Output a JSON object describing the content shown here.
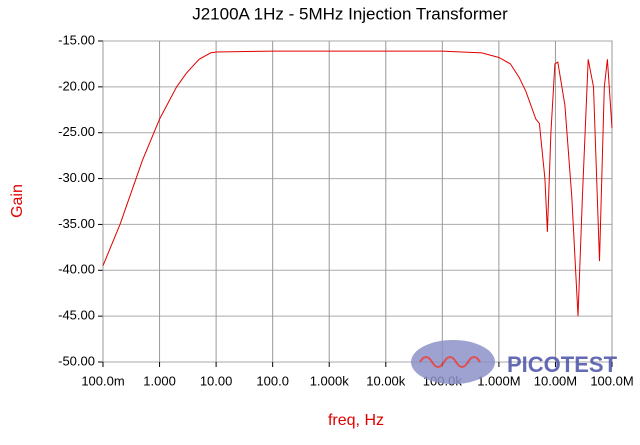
{
  "chart_data": {
    "type": "line",
    "title": "J2100A 1Hz - 5MHz Injection Transformer",
    "x_label": "freq, Hz",
    "y_label": "Gain",
    "log_x": true,
    "grid": true,
    "xlim": [
      0.1,
      100000000
    ],
    "ylim": [
      -50,
      -15
    ],
    "xticks": [
      {
        "value": 0.1,
        "label": "100.0m"
      },
      {
        "value": 1,
        "label": "1.000"
      },
      {
        "value": 10,
        "label": "10.00"
      },
      {
        "value": 100,
        "label": "100.0"
      },
      {
        "value": 1000,
        "label": "1.000k"
      },
      {
        "value": 10000,
        "label": "10.00k"
      },
      {
        "value": 100000,
        "label": "100.0k"
      },
      {
        "value": 1000000,
        "label": "1.000M"
      },
      {
        "value": 10000000,
        "label": "10.00M"
      },
      {
        "value": 100000000,
        "label": "100.0M"
      }
    ],
    "yticks": [
      {
        "value": -15,
        "label": "-15.00"
      },
      {
        "value": -20,
        "label": "-20.00"
      },
      {
        "value": -25,
        "label": "-25.00"
      },
      {
        "value": -30,
        "label": "-30.00"
      },
      {
        "value": -35,
        "label": "-35.00"
      },
      {
        "value": -40,
        "label": "-40.00"
      },
      {
        "value": -45,
        "label": "-45.00"
      },
      {
        "value": -50,
        "label": "-50.00"
      }
    ],
    "series": [
      {
        "name": "Gain",
        "color": "#e00000",
        "x": [
          0.1,
          0.2,
          0.5,
          1,
          2,
          3,
          5,
          8,
          10,
          100,
          1000,
          10000,
          100000,
          500000,
          1000000,
          1600000,
          2300000,
          3000000,
          4500000,
          5200000,
          6500000,
          7200000,
          8300000,
          9800000,
          11000000,
          14700000,
          19500000,
          25000000,
          30000000,
          38000000,
          47000000,
          60000000,
          73000000,
          83000000,
          100000000
        ],
        "values": [
          -39.5,
          -35,
          -28,
          -23.5,
          -20,
          -18.5,
          -17,
          -16.3,
          -16.2,
          -16.1,
          -16.1,
          -16.1,
          -16.1,
          -16.3,
          -16.8,
          -17.5,
          -19,
          -20.5,
          -23.5,
          -24,
          -30,
          -35.8,
          -25,
          -17.5,
          -17.3,
          -22,
          -32,
          -45,
          -32,
          -17,
          -20,
          -39,
          -20,
          -17,
          -24.5
        ]
      }
    ]
  },
  "logo": "PICOTEST"
}
